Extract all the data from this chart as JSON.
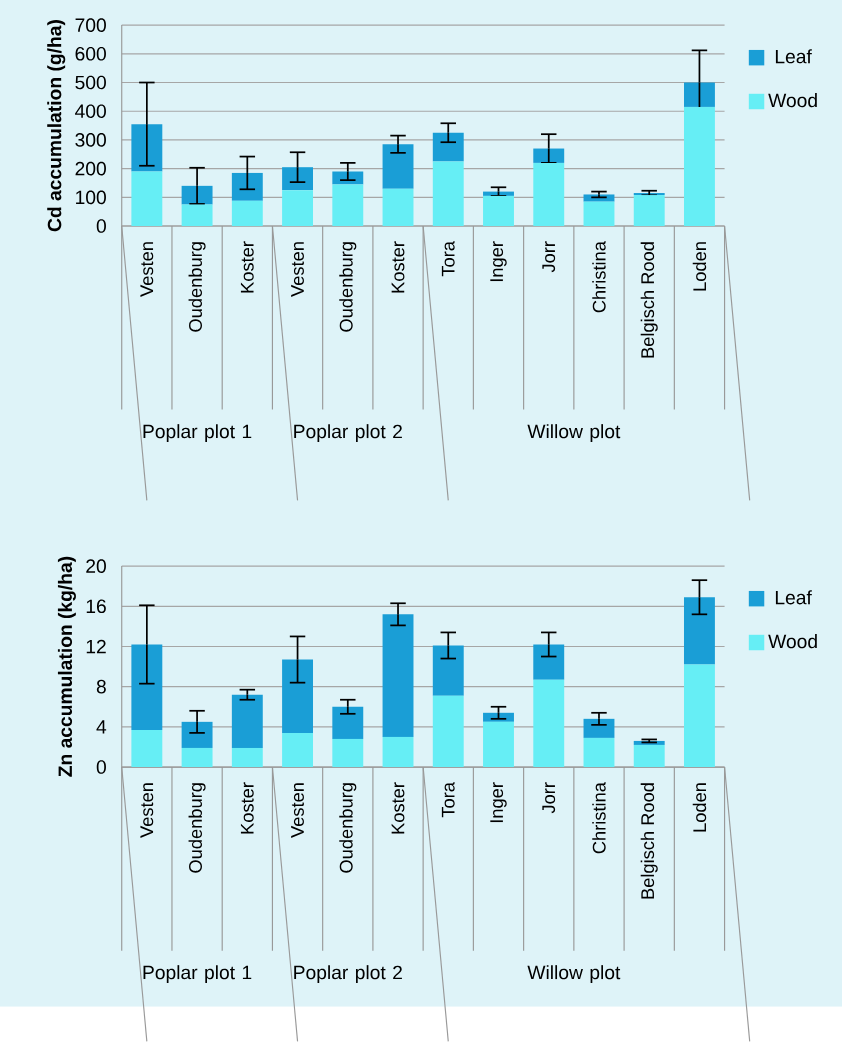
{
  "chart_data": [
    {
      "type": "bar",
      "ylabel": "Cd accumulation (g/ha)",
      "categories": [
        "Vesten",
        "Oudenburg",
        "Koster",
        "Vesten",
        "Oudenburg",
        "Koster",
        "Tora",
        "Inger",
        "Jorr",
        "Christina",
        "Belgisch Rood",
        "Loden"
      ],
      "series": [
        {
          "name": "Wood",
          "color": "#66eef5",
          "values": [
            190,
            75,
            88,
            125,
            145,
            130,
            225,
            105,
            220,
            85,
            108,
            415
          ]
        },
        {
          "name": "Leaf",
          "color": "#1a9ed6",
          "values": [
            165,
            65,
            97,
            80,
            45,
            155,
            100,
            15,
            50,
            25,
            7,
            85
          ],
          "errors": [
            145,
            63,
            57,
            52,
            30,
            30,
            33,
            15,
            50,
            10,
            8,
            112
          ]
        }
      ],
      "stacked": true,
      "ylim": [
        0,
        700
      ],
      "yticks": [
        0,
        100,
        200,
        300,
        400,
        500,
        600,
        700
      ],
      "grid": "y",
      "legend": "right",
      "annotations": [
        "Poplar plot 1",
        "Poplar plot 2",
        "Willow plot"
      ]
    },
    {
      "type": "bar",
      "ylabel": "Zn accumulation (kg/ha)",
      "categories": [
        "Vesten",
        "Oudenburg",
        "Koster",
        "Vesten",
        "Oudenburg",
        "Koster",
        "Tora",
        "Inger",
        "Jorr",
        "Christina",
        "Belgisch Rood",
        "Loden"
      ],
      "series": [
        {
          "name": "Wood",
          "color": "#66eef5",
          "values": [
            3.7,
            1.9,
            1.9,
            3.4,
            2.8,
            3.0,
            7.1,
            4.5,
            8.7,
            2.9,
            2.2,
            10.2
          ]
        },
        {
          "name": "Leaf",
          "color": "#1a9ed6",
          "values": [
            8.5,
            2.6,
            5.3,
            7.3,
            3.2,
            12.2,
            5.0,
            0.9,
            3.5,
            1.9,
            0.4,
            6.7
          ],
          "errors": [
            3.9,
            1.1,
            0.5,
            2.3,
            0.7,
            1.1,
            1.3,
            0.6,
            1.2,
            0.6,
            0.15,
            1.7
          ]
        }
      ],
      "stacked": true,
      "ylim": [
        0,
        20
      ],
      "yticks": [
        0,
        4,
        8,
        12,
        16,
        20
      ],
      "grid": "y",
      "legend": "right",
      "annotations": [
        "Poplar plot 1",
        "Poplar plot 2",
        "Willow plot"
      ]
    }
  ]
}
